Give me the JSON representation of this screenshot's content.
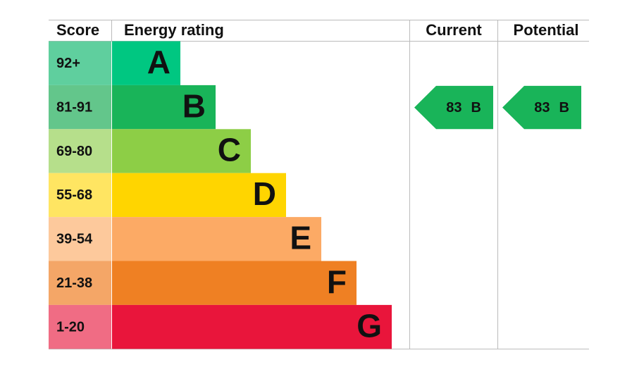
{
  "headers": {
    "score": "Score",
    "rating": "Energy rating",
    "current": "Current",
    "potential": "Potential"
  },
  "bands": [
    {
      "range": "92+",
      "letter": "A",
      "color": "#00c781",
      "light": "#5fcf9e"
    },
    {
      "range": "81-91",
      "letter": "B",
      "color": "#19b459",
      "light": "#63c68b"
    },
    {
      "range": "69-80",
      "letter": "C",
      "color": "#8dce46",
      "light": "#b6df8b"
    },
    {
      "range": "55-68",
      "letter": "D",
      "color": "#ffd500",
      "light": "#ffe562"
    },
    {
      "range": "39-54",
      "letter": "E",
      "color": "#fcaa65",
      "light": "#fdc99c"
    },
    {
      "range": "21-38",
      "letter": "F",
      "color": "#ef8023",
      "light": "#f4a667"
    },
    {
      "range": "1-20",
      "letter": "G",
      "color": "#e9153b",
      "light": "#f06c84"
    }
  ],
  "current": {
    "score": 83,
    "band": "B"
  },
  "potential": {
    "score": 83,
    "band": "B"
  }
}
